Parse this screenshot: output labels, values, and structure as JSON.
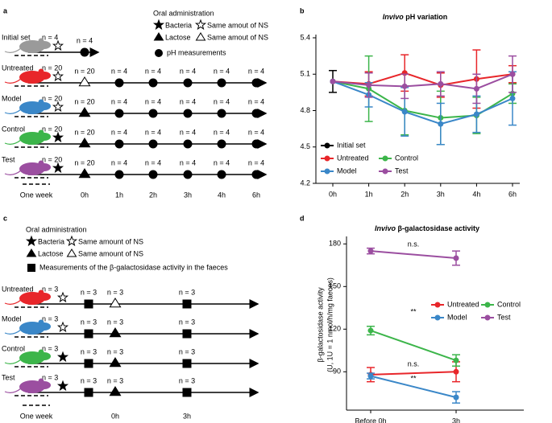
{
  "panel_labels": [
    "a",
    "b",
    "c",
    "d"
  ],
  "diagram_a": {
    "legend": {
      "heading": "Oral administration",
      "bacteria": "Bacteria",
      "bacteria_ns": "Same amout of NS",
      "lactose": "Lactose",
      "lactose_ns": "Same amout of NS",
      "measure": "pH measurements"
    },
    "rows": [
      {
        "label": "Initial set",
        "n": "n = 4",
        "color": "#9a9a9a",
        "bacteria": false,
        "lactose": null,
        "nodes": [
          "n = 4"
        ]
      },
      {
        "label": "Untreated",
        "n": "n = 20",
        "color": "#e8262a",
        "bacteria": false,
        "lactose": false,
        "nodes": [
          "n = 20",
          "n = 4",
          "n = 4",
          "n = 4",
          "n = 4",
          "n = 4"
        ]
      },
      {
        "label": "Model",
        "n": "n = 20",
        "color": "#3a87c8",
        "bacteria": false,
        "lactose": true,
        "nodes": [
          "n = 20",
          "n = 4",
          "n = 4",
          "n = 4",
          "n = 4",
          "n = 4"
        ]
      },
      {
        "label": "Control",
        "n": "n = 20",
        "color": "#3cb54a",
        "bacteria": true,
        "lactose": true,
        "nodes": [
          "n = 20",
          "n = 4",
          "n = 4",
          "n = 4",
          "n = 4",
          "n = 4"
        ]
      },
      {
        "label": "Test",
        "n": "n = 20",
        "color": "#9b4ea0",
        "bacteria": true,
        "lactose": true,
        "nodes": [
          "n = 20",
          "n = 4",
          "n = 4",
          "n = 4",
          "n = 4",
          "n = 4"
        ]
      }
    ],
    "times": [
      "One week",
      "0h",
      "1h",
      "2h",
      "3h",
      "4h",
      "6h"
    ]
  },
  "diagram_c": {
    "legend": {
      "heading": "Oral administration",
      "bacteria": "Bacteria",
      "bacteria_ns": "Same amount of NS",
      "lactose": "Lactose",
      "lactose_ns": "Same amount of NS",
      "measure": "Measurements of the β-galactosidase activity in the faeces"
    },
    "rows": [
      {
        "label": "Untreated",
        "n": "n = 3",
        "color": "#e8262a",
        "bacteria": false,
        "lactose": false,
        "nodes": [
          "n = 3",
          "n = 3",
          "n = 3"
        ]
      },
      {
        "label": "Model",
        "n": "n = 3",
        "color": "#3a87c8",
        "bacteria": false,
        "lactose": true,
        "nodes": [
          "n = 3",
          "n = 3",
          "n = 3"
        ]
      },
      {
        "label": "Control",
        "n": "n = 3",
        "color": "#3cb54a",
        "bacteria": true,
        "lactose": true,
        "nodes": [
          "n = 3",
          "n = 3",
          "n = 3"
        ]
      },
      {
        "label": "Test",
        "n": "n = 3",
        "color": "#9b4ea0",
        "bacteria": true,
        "lactose": true,
        "nodes": [
          "n = 3",
          "n = 3",
          "n = 3"
        ]
      }
    ],
    "times": [
      "One week",
      "0h",
      "3h"
    ]
  },
  "chart_data": [
    {
      "type": "line",
      "title_emphasis": "Invivo",
      "title": "pH variation",
      "categories": [
        "0h",
        "1h",
        "2h",
        "3h",
        "4h",
        "6h"
      ],
      "ylim": [
        4.2,
        5.4
      ],
      "yticks": [
        4.2,
        4.5,
        4.8,
        5.1,
        5.4
      ],
      "series": [
        {
          "name": "Initial set",
          "color": "#000000",
          "values": [
            5.04,
            null,
            null,
            null,
            null,
            null
          ],
          "errors": [
            0.09,
            null,
            null,
            null,
            null,
            null
          ]
        },
        {
          "name": "Untreated",
          "color": "#e8262a",
          "values": [
            5.04,
            5.02,
            5.11,
            5.01,
            5.06,
            5.1
          ],
          "errors": [
            null,
            0.1,
            0.15,
            0.1,
            0.24,
            0.07
          ]
        },
        {
          "name": "Control",
          "color": "#3cb54a",
          "values": [
            5.04,
            4.98,
            4.8,
            4.74,
            4.76,
            4.94
          ],
          "errors": [
            null,
            0.27,
            0.2,
            0.22,
            0.15,
            0.08
          ]
        },
        {
          "name": "Model",
          "color": "#3a87c8",
          "values": [
            5.04,
            4.93,
            4.79,
            4.69,
            4.77,
            4.9
          ],
          "errors": [
            null,
            0.1,
            0.2,
            0.17,
            0.15,
            0.22
          ]
        },
        {
          "name": "Test",
          "color": "#9b4ea0",
          "values": [
            5.04,
            5.01,
            5.0,
            5.02,
            4.98,
            5.1
          ],
          "errors": [
            null,
            0.1,
            0.1,
            0.1,
            0.12,
            0.15
          ]
        }
      ]
    },
    {
      "type": "line",
      "title_emphasis": "Invivo",
      "title": "β-galactosidase activity",
      "y_label": "β-galactosidase activity",
      "y_label_unit": "(U, 1U = 1  nmol/h/mg faeces)",
      "categories": [
        "Before 0h",
        "3h"
      ],
      "ylim": [
        63,
        183
      ],
      "yticks": [
        90,
        120,
        150,
        180
      ],
      "series": [
        {
          "name": "Untreated",
          "color": "#e8262a",
          "values": [
            88,
            90
          ],
          "errors": [
            5,
            7
          ]
        },
        {
          "name": "Control",
          "color": "#3cb54a",
          "values": [
            119,
            98
          ],
          "errors": [
            3,
            4
          ]
        },
        {
          "name": "Model",
          "color": "#3a87c8",
          "values": [
            87,
            72
          ],
          "errors": [
            2,
            4
          ]
        },
        {
          "name": "Test",
          "color": "#9b4ea0",
          "values": [
            175,
            170
          ],
          "errors": [
            2,
            5
          ]
        }
      ],
      "annotations": [
        {
          "text": "n.s.",
          "color": "#9b4ea0"
        },
        {
          "text": "**",
          "color": "#3cb54a"
        },
        {
          "text": "n.s.",
          "color": "#e8262a"
        },
        {
          "text": "**",
          "color": "#3a87c8"
        }
      ]
    }
  ]
}
